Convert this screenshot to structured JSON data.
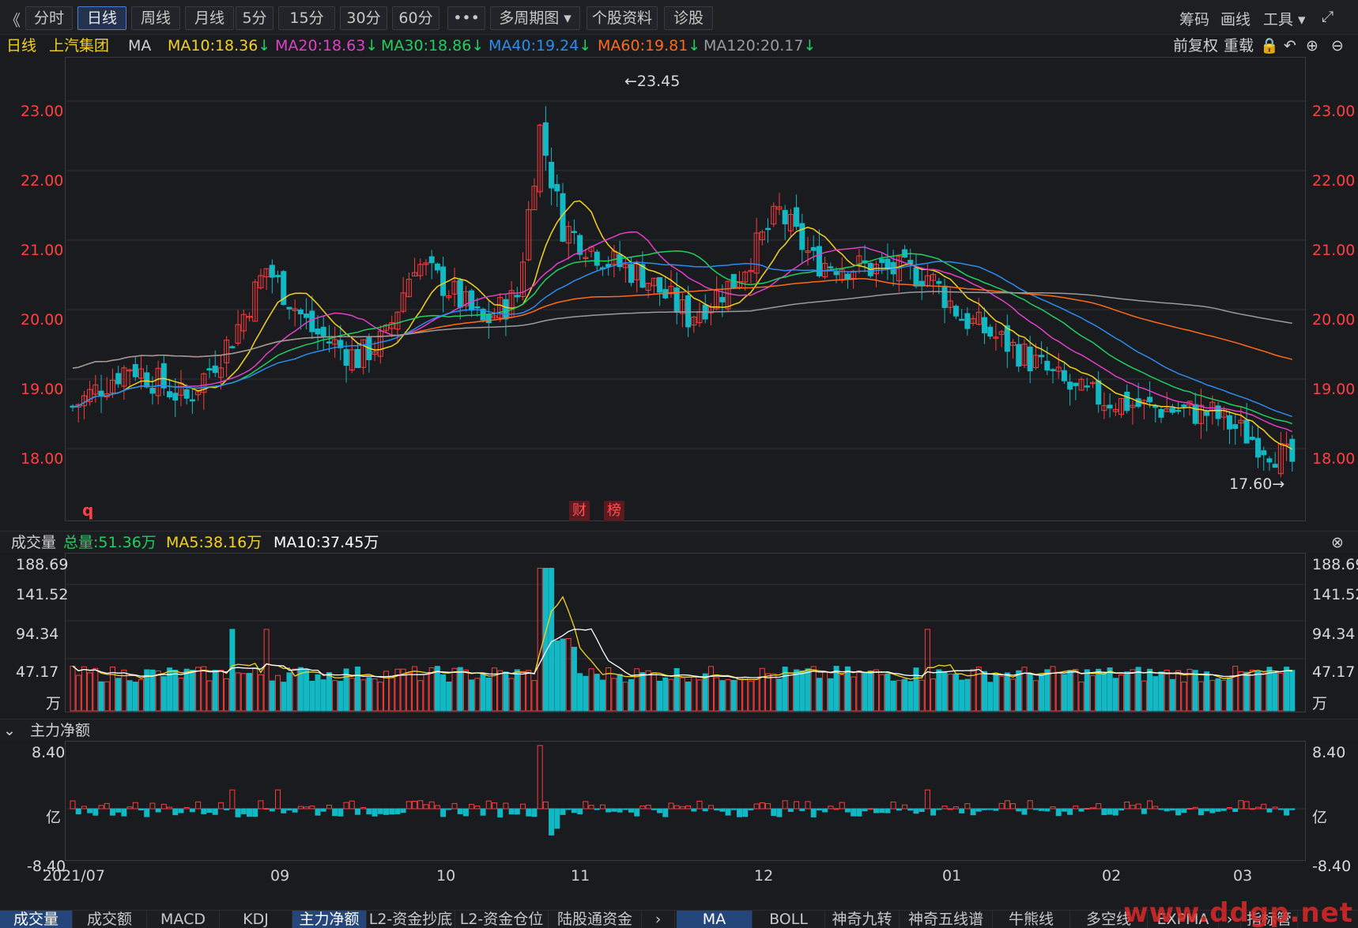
{
  "toolbar": {
    "back": "《",
    "buttons": [
      "分时",
      "日线",
      "周线",
      "月线",
      "5分",
      "15分",
      "30分",
      "60分",
      "•••",
      "多周期图 ▾",
      "个股资料",
      "诊股"
    ],
    "active_index": 1,
    "right": [
      "筹码",
      "画线",
      "工具 ▾",
      "⤢"
    ]
  },
  "ma_legend": {
    "period": "日线",
    "stock": "上汽集团",
    "label": "MA",
    "items": [
      {
        "text": "MA10:18.36",
        "color": "#f5d21e",
        "arrow": "↓"
      },
      {
        "text": "MA20:18.63",
        "color": "#e040c8",
        "arrow": "↓"
      },
      {
        "text": "MA30:18.86",
        "color": "#1fcf5f",
        "arrow": "↓"
      },
      {
        "text": "MA40:19.24",
        "color": "#2b8cf0",
        "arrow": "↓"
      },
      {
        "text": "MA60:19.81",
        "color": "#ff6a1a",
        "arrow": "↓"
      },
      {
        "text": "MA120:20.17",
        "color": "#9a9a9a",
        "arrow": "↓"
      }
    ],
    "right": [
      "前复权",
      "重载",
      "🔒",
      "↶",
      "⊕",
      "⊖"
    ]
  },
  "price_axis": {
    "labels": [
      "23.00",
      "22.00",
      "21.00",
      "20.00",
      "19.00",
      "18.00"
    ],
    "max_label": "←23.45",
    "min_label": "17.60→",
    "marker_q": "q",
    "badges": [
      "财",
      "榜"
    ]
  },
  "volume": {
    "title": "成交量",
    "total": "总量:51.36万",
    "ma5": "MA5:38.16万",
    "ma10": "MA10:37.45万",
    "arrow": "↑",
    "labels": [
      "188.69",
      "141.52",
      "94.34",
      "47.17",
      "万"
    ]
  },
  "mainforce": {
    "title": "主力净额",
    "labels": [
      "8.40",
      "亿",
      "-8.40"
    ]
  },
  "dates": [
    "2021/07",
    "09",
    "10",
    "11",
    "12",
    "01",
    "02",
    "03"
  ],
  "bottom_tabs_left": [
    "成交量",
    "成交额",
    "MACD",
    "KDJ",
    "主力净额",
    "L2-资金抄底",
    "L2-资金仓位",
    "陆股通资金",
    "›"
  ],
  "bottom_tabs_right": [
    "MA",
    "BOLL",
    "神奇九转",
    "神奇五线谱",
    "牛熊线",
    "多空线",
    "EXPMA",
    "›",
    "指标管理"
  ],
  "watermark": "www.ddgp.net",
  "colors": {
    "up": "#ff3b3b",
    "down": "#12b8c4",
    "grid": "#2e3036"
  }
}
